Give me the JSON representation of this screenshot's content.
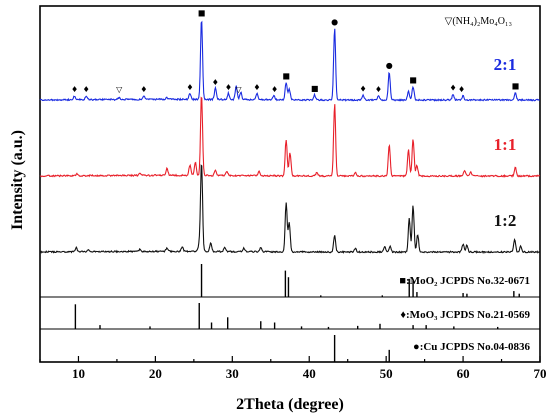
{
  "chart_data": {
    "type": "line",
    "xlabel": "2Theta (degree)",
    "ylabel": "Intensity (a.u.)",
    "xlim": [
      5,
      70
    ],
    "xticks": [
      10,
      20,
      30,
      40,
      50,
      60,
      70
    ],
    "legend_note": "▽(NH₄)₂Mo₄O₁₃",
    "legend_marker_symbol": "▽",
    "legend_marker_text": "(NH₄)₂Mo₄O₁₃",
    "series": [
      {
        "name": "2:1",
        "color": "#1a2be0",
        "baseline": 0,
        "noise_seed": 3,
        "peaks": [
          [
            9.5,
            6
          ],
          [
            11.0,
            5
          ],
          [
            15.3,
            3
          ],
          [
            18.5,
            5
          ],
          [
            21.5,
            3
          ],
          [
            24.5,
            10
          ],
          [
            26.0,
            130
          ],
          [
            27.8,
            18
          ],
          [
            29.5,
            10
          ],
          [
            30.5,
            22
          ],
          [
            31.1,
            12
          ],
          [
            33.2,
            10
          ],
          [
            35.4,
            7
          ],
          [
            37.0,
            28
          ],
          [
            37.4,
            18
          ],
          [
            40.7,
            8
          ],
          [
            43.3,
            115
          ],
          [
            47.0,
            7
          ],
          [
            49.0,
            6
          ],
          [
            50.4,
            45
          ],
          [
            52.9,
            14
          ],
          [
            53.5,
            22
          ],
          [
            58.7,
            9
          ],
          [
            60.0,
            7
          ],
          [
            66.8,
            12
          ]
        ]
      },
      {
        "name": "1:1",
        "color": "#e8202a",
        "baseline": 1,
        "noise_seed": 7,
        "peaks": [
          [
            9.8,
            3
          ],
          [
            18.0,
            4
          ],
          [
            21.5,
            12
          ],
          [
            24.5,
            18
          ],
          [
            25.2,
            22
          ],
          [
            26.0,
            135
          ],
          [
            27.8,
            8
          ],
          [
            29.3,
            7
          ],
          [
            33.5,
            7
          ],
          [
            37.0,
            60
          ],
          [
            37.5,
            38
          ],
          [
            41.0,
            6
          ],
          [
            43.3,
            120
          ],
          [
            46.0,
            5
          ],
          [
            50.4,
            52
          ],
          [
            52.9,
            44
          ],
          [
            53.5,
            62
          ],
          [
            54.0,
            18
          ],
          [
            60.2,
            10
          ],
          [
            61.0,
            6
          ],
          [
            66.8,
            14
          ]
        ]
      },
      {
        "name": "1:2",
        "color": "#111111",
        "baseline": 2,
        "noise_seed": 11,
        "peaks": [
          [
            9.7,
            7
          ],
          [
            11.3,
            4
          ],
          [
            18.0,
            4
          ],
          [
            21.5,
            6
          ],
          [
            23.5,
            8
          ],
          [
            25.7,
            14
          ],
          [
            26.0,
            155
          ],
          [
            27.2,
            15
          ],
          [
            29.0,
            8
          ],
          [
            31.5,
            6
          ],
          [
            33.7,
            7
          ],
          [
            37.0,
            85
          ],
          [
            37.4,
            50
          ],
          [
            43.3,
            28
          ],
          [
            46.0,
            6
          ],
          [
            49.8,
            10
          ],
          [
            50.5,
            10
          ],
          [
            53.0,
            58
          ],
          [
            53.5,
            80
          ],
          [
            54.1,
            30
          ],
          [
            60.0,
            14
          ],
          [
            60.5,
            12
          ],
          [
            66.7,
            22
          ],
          [
            67.5,
            10
          ]
        ]
      }
    ],
    "peak_markers": [
      {
        "series": 0,
        "symbol": "♦",
        "x": [
          9.5,
          11.0,
          18.5,
          24.5,
          27.8,
          29.5,
          33.2,
          35.5,
          47.0,
          49.0,
          58.7,
          59.8
        ]
      },
      {
        "series": 0,
        "symbol": "■",
        "x": [
          26.0,
          37.0,
          40.7,
          53.5,
          66.8
        ]
      },
      {
        "series": 0,
        "symbol": "●",
        "x": [
          43.3,
          50.4
        ]
      },
      {
        "series": 0,
        "symbol": "▽",
        "x": [
          15.3,
          30.8
        ]
      }
    ],
    "references": [
      {
        "label": "■:MoO₂ JCPDS No.32-0671",
        "sticks": [
          [
            26.0,
            1.0
          ],
          [
            36.9,
            0.8
          ],
          [
            37.3,
            0.6
          ],
          [
            41.5,
            0.05
          ],
          [
            49.5,
            0.05
          ],
          [
            53.0,
            0.55
          ],
          [
            53.5,
            0.5
          ],
          [
            54.0,
            0.15
          ],
          [
            60.0,
            0.12
          ],
          [
            60.5,
            0.1
          ],
          [
            66.6,
            0.18
          ],
          [
            67.3,
            0.1
          ]
        ]
      },
      {
        "label": "♦:MoO₃ JCPDS No.21-0569",
        "sticks": [
          [
            9.6,
            0.95
          ],
          [
            12.8,
            0.15
          ],
          [
            19.3,
            0.1
          ],
          [
            25.7,
            1.0
          ],
          [
            27.3,
            0.25
          ],
          [
            29.4,
            0.45
          ],
          [
            33.7,
            0.3
          ],
          [
            35.5,
            0.25
          ],
          [
            39.0,
            0.1
          ],
          [
            42.5,
            0.08
          ],
          [
            46.3,
            0.12
          ],
          [
            49.2,
            0.2
          ],
          [
            53.5,
            0.15
          ],
          [
            55.2,
            0.15
          ],
          [
            58.8,
            0.1
          ],
          [
            64.5,
            0.08
          ]
        ]
      },
      {
        "label": "●:Cu JCPDS No.04-0836",
        "sticks": [
          [
            43.3,
            1.0
          ],
          [
            50.4,
            0.45
          ]
        ]
      }
    ]
  }
}
